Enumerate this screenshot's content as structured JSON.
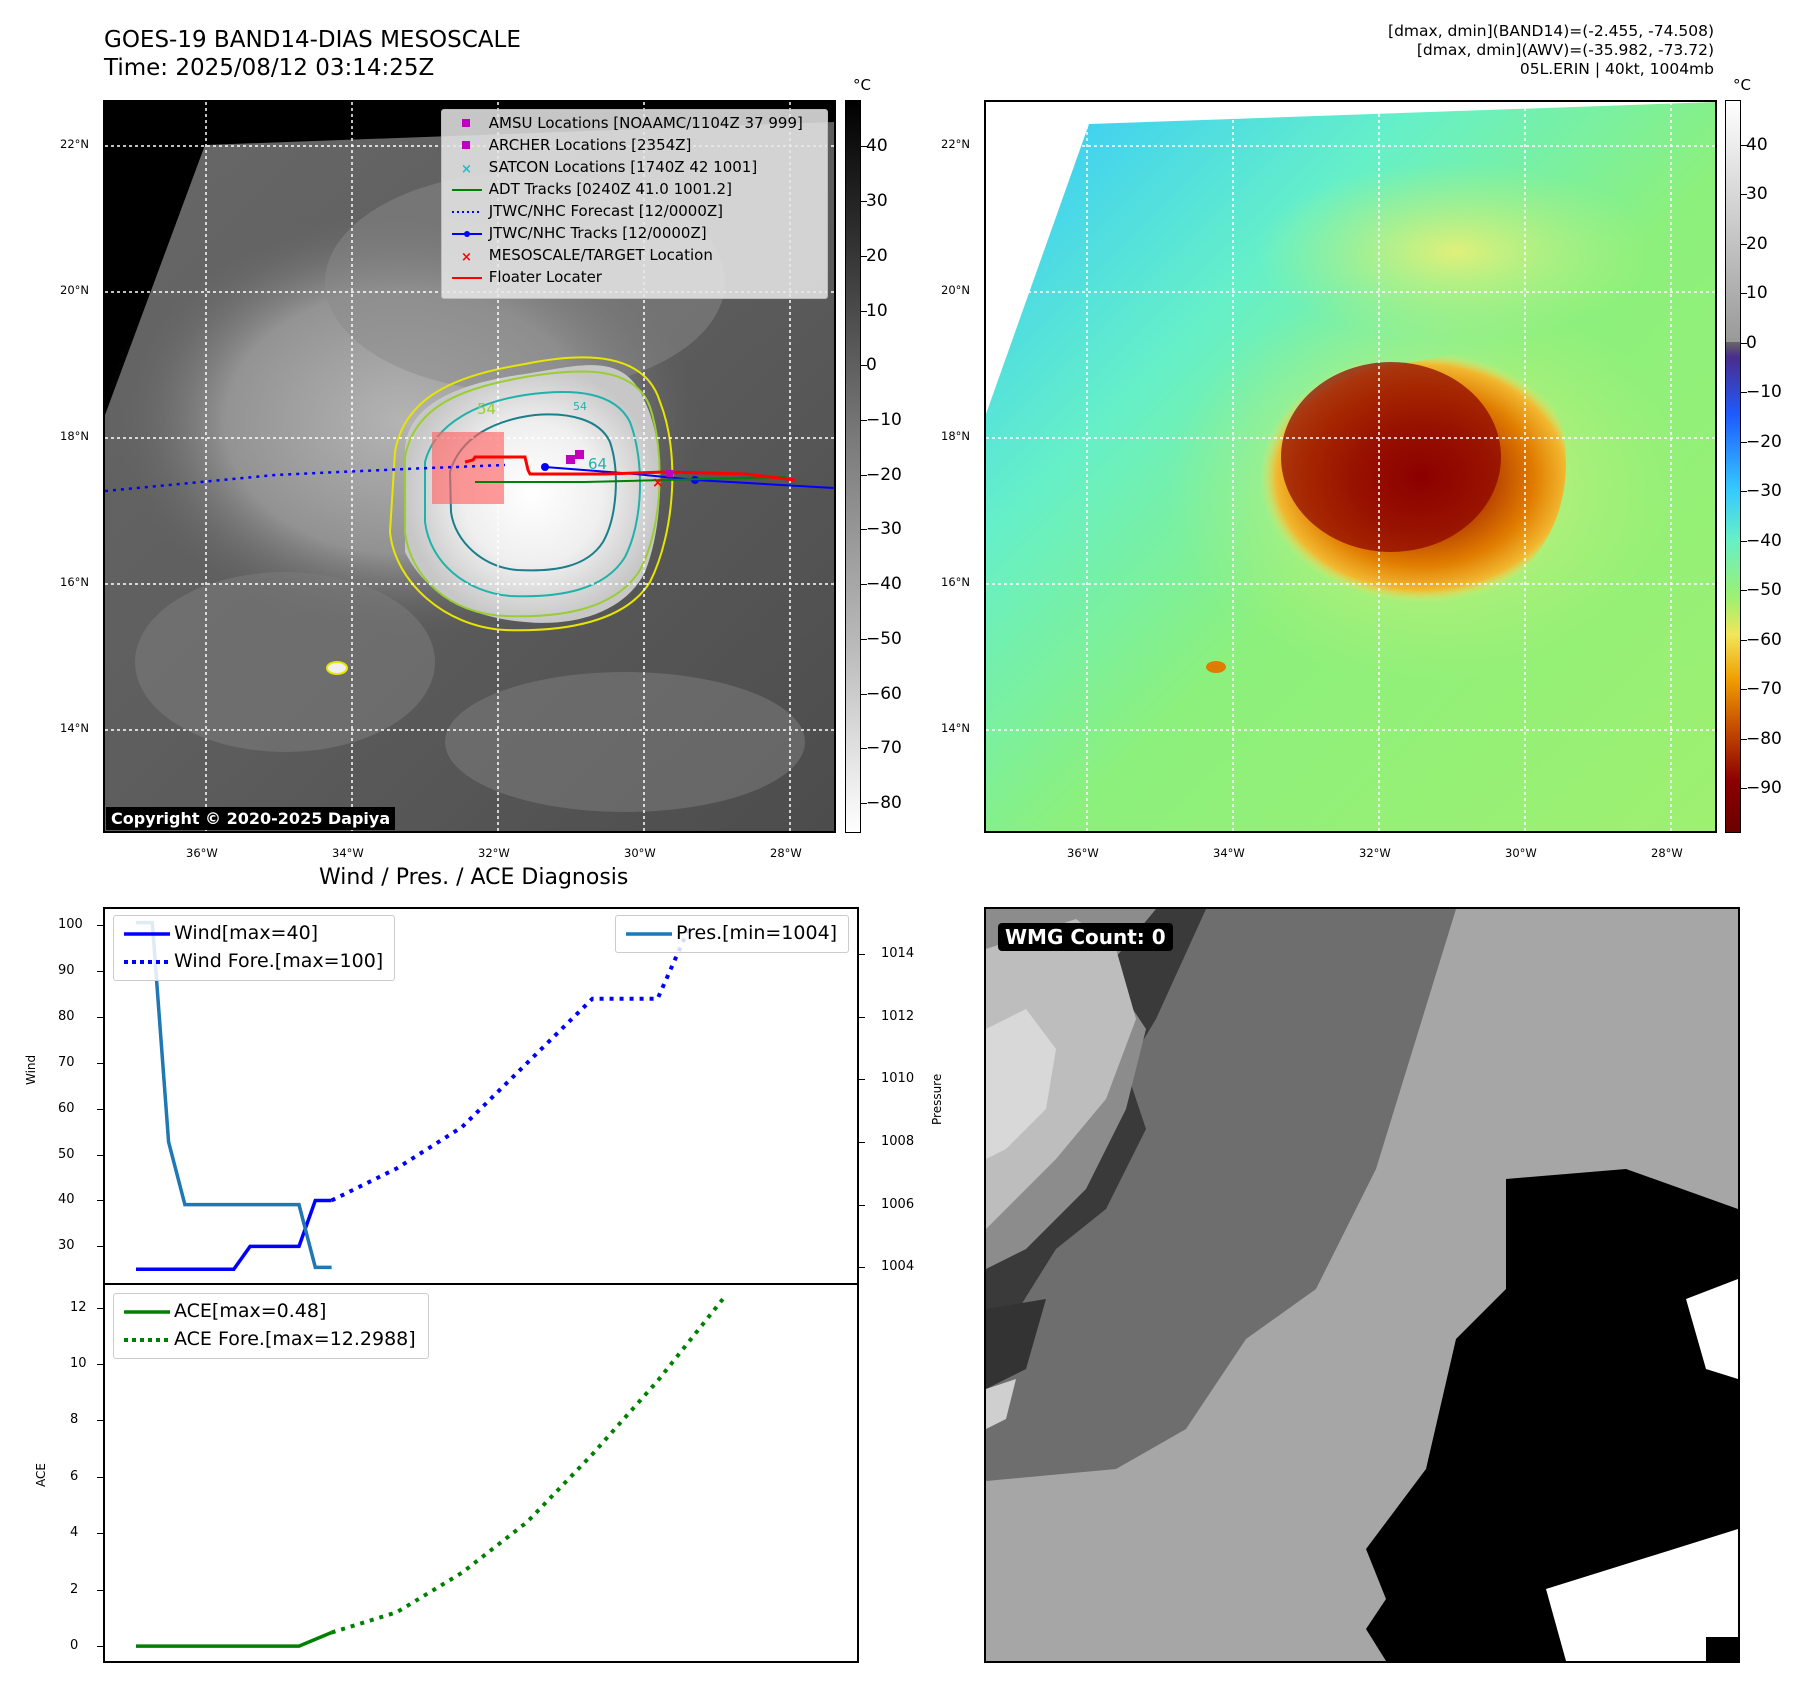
{
  "header": {
    "title_line1": "GOES-19 BAND14-DIAS MESOSCALE",
    "title_line2": "Time: 2025/08/12 03:14:25Z",
    "stats_line1": "[dmax, dmin](BAND14)=(-2.455, -74.508)",
    "stats_line2": "[dmax, dmin](AWV)=(-35.982, -73.72)",
    "stats_line3": "05L.ERIN | 40kt, 1004mb"
  },
  "map": {
    "lat_labels": [
      "22°N",
      "20°N",
      "18°N",
      "16°N",
      "14°N"
    ],
    "lon_labels": [
      "36°W",
      "34°W",
      "32°W",
      "30°W",
      "28°W"
    ],
    "contour_labels": [
      "54",
      "64",
      "54"
    ],
    "copyright": "Copyright © 2020-2025 Dapiya",
    "legend": [
      {
        "label": "AMSU Locations [NOAAMC/1104Z 37 999]",
        "color": "#bf00bf",
        "marker": "square"
      },
      {
        "label": "ARCHER Locations [2354Z]",
        "color": "#bf00bf",
        "marker": "square"
      },
      {
        "label": "SATCON Locations [1740Z 42 1001]",
        "color": "#17becf",
        "marker": "x"
      },
      {
        "label": "ADT Tracks [0240Z 41.0 1001.2]",
        "color": "#008000",
        "marker": "line"
      },
      {
        "label": "JTWC/NHC Forecast [12/0000Z]",
        "color": "#0000ff",
        "marker": "dotted"
      },
      {
        "label": "JTWC/NHC Tracks [12/0000Z]",
        "color": "#0000ff",
        "marker": "line-dot"
      },
      {
        "label": "MESOSCALE/TARGET Location",
        "color": "#ff0000",
        "marker": "x"
      },
      {
        "label": "Floater Locater",
        "color": "#ff0000",
        "marker": "line"
      }
    ]
  },
  "colorbar_left": {
    "unit": "°C",
    "ticks": [
      "40",
      "30",
      "20",
      "10",
      "0",
      "−10",
      "−20",
      "−30",
      "−40",
      "−50",
      "−60",
      "−70",
      "−80"
    ]
  },
  "colorbar_right": {
    "unit": "°C",
    "ticks": [
      "40",
      "30",
      "20",
      "10",
      "0",
      "−10",
      "−20",
      "−30",
      "−40",
      "−50",
      "−60",
      "−70",
      "−80",
      "−90"
    ]
  },
  "diagnosis": {
    "title": "Wind / Pres. / ACE Diagnosis",
    "wind_ylabel": "Wind",
    "pressure_ylabel": "Pressure",
    "ace_ylabel": "ACE",
    "wind_ticks": [
      "100",
      "90",
      "80",
      "70",
      "60",
      "50",
      "40",
      "30"
    ],
    "pres_ticks": [
      "1014",
      "1012",
      "1010",
      "1008",
      "1006",
      "1004"
    ],
    "ace_ticks": [
      "12",
      "10",
      "8",
      "6",
      "4",
      "2",
      "0"
    ],
    "legend_wind": "Wind[max=40]",
    "legend_wind_fore": "Wind Fore.[max=100]",
    "legend_pres": "Pres.[min=1004]",
    "legend_ace": "ACE[max=0.48]",
    "legend_ace_fore": "ACE Fore.[max=12.2988]"
  },
  "wmg": {
    "label": "WMG Count: 0"
  },
  "chart_data": [
    {
      "type": "line",
      "title": "Wind / Pres. / ACE Diagnosis",
      "ylabel": "Wind",
      "ylim": [
        22,
        104
      ],
      "series": [
        {
          "name": "Wind[max=40]",
          "x": [
            0,
            1,
            2,
            3,
            4,
            5,
            6,
            7,
            8,
            9,
            10,
            11,
            12
          ],
          "values": [
            25,
            25,
            25,
            25,
            25,
            25,
            25,
            30,
            30,
            30,
            30,
            40,
            40
          ],
          "color": "#0000ff",
          "style": "solid"
        },
        {
          "name": "Wind Fore.[max=100]",
          "x": [
            12,
            16,
            20,
            24,
            28,
            32,
            34
          ],
          "values": [
            40,
            47,
            56,
            70,
            84,
            84,
            100
          ],
          "color": "#0000ff",
          "style": "dotted"
        }
      ]
    },
    {
      "type": "line",
      "ylabel": "Pressure",
      "ylim": [
        1003.5,
        1015.5
      ],
      "series": [
        {
          "name": "Pres.[min=1004]",
          "x": [
            0,
            1,
            2,
            3,
            4,
            5,
            6,
            7,
            8,
            9,
            10,
            11,
            12
          ],
          "values": [
            1015,
            1015,
            1008,
            1006,
            1006,
            1006,
            1006,
            1006,
            1006,
            1006,
            1006,
            1004,
            1004
          ],
          "color": "#1f77b4",
          "style": "solid"
        }
      ]
    },
    {
      "type": "line",
      "ylabel": "ACE",
      "ylim": [
        -0.6,
        12.8
      ],
      "series": [
        {
          "name": "ACE[max=0.48]",
          "x": [
            0,
            10,
            12
          ],
          "values": [
            0,
            0,
            0.48
          ],
          "color": "#008000",
          "style": "solid"
        },
        {
          "name": "ACE Fore.[max=12.2988]",
          "x": [
            12,
            16,
            20,
            24,
            28,
            32,
            36
          ],
          "values": [
            0.48,
            1.2,
            2.6,
            4.4,
            6.8,
            9.4,
            12.2988
          ],
          "color": "#008000",
          "style": "dotted"
        }
      ]
    }
  ]
}
